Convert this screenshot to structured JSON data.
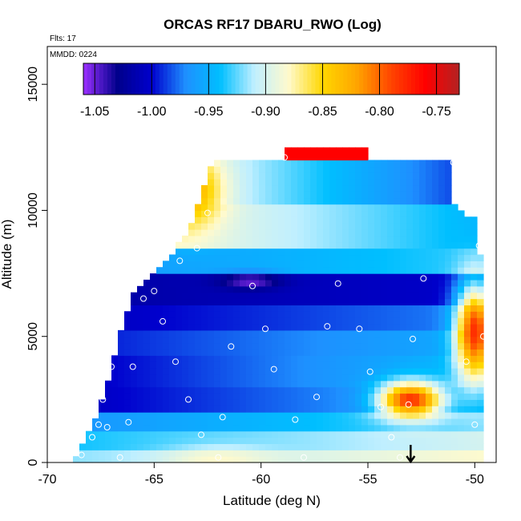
{
  "chart_data": {
    "type": "heatmap",
    "title": "ORCAS RF17 DBARU_RWO (Log)",
    "xlabel": "Latitude (deg N)",
    "ylabel": "Altitude (m)",
    "xlim": [
      -70,
      -49
    ],
    "ylim": [
      0,
      16500
    ],
    "x_ticks": [
      "-70",
      "-65",
      "-60",
      "-55",
      "-50"
    ],
    "y_ticks": [
      "0",
      "5000",
      "10000",
      "15000"
    ],
    "annotations": {
      "flights": "Flts: 17",
      "date": "MMDD: 0224"
    },
    "colorbar": {
      "range": [
        -1.06,
        -0.73
      ],
      "ticks": [
        "-1.05",
        "-1.00",
        "-0.95",
        "-0.90",
        "-0.85",
        "-0.80",
        "-0.75"
      ],
      "tick_values": [
        -1.05,
        -1.0,
        -0.95,
        -0.9,
        -0.85,
        -0.8,
        -0.75
      ],
      "colors": [
        "#9b30ff",
        "#00008b",
        "#0000cd",
        "#1e90ff",
        "#00bfff",
        "#bfefff",
        "#fffacd",
        "#ffd700",
        "#ffa500",
        "#ff4500",
        "#ff0000",
        "#b22222"
      ]
    },
    "envelope": [
      [
        -68.8,
        0
      ],
      [
        -68.6,
        500
      ],
      [
        -68.0,
        1200
      ],
      [
        -67.4,
        2500
      ],
      [
        -67.0,
        3800
      ],
      [
        -66.6,
        5200
      ],
      [
        -66.0,
        6600
      ],
      [
        -64.8,
        7600
      ],
      [
        -64.0,
        8400
      ],
      [
        -63.0,
        10000
      ],
      [
        -62.3,
        12000
      ],
      [
        -51.0,
        12000
      ],
      [
        -51.0,
        10200
      ],
      [
        -50.0,
        9600
      ],
      [
        -49.8,
        8700
      ],
      [
        -49.5,
        5500
      ],
      [
        -49.5,
        200
      ],
      [
        -49.6,
        0
      ]
    ],
    "top_patch": {
      "x": [
        -59.0,
        -55.0
      ],
      "y": [
        12000,
        12600
      ],
      "value": -0.76
    },
    "bands": [
      {
        "y": [
          0,
          400
        ],
        "v_start": -0.92,
        "v_end": -0.88
      },
      {
        "y": [
          400,
          1200
        ],
        "v_start": -0.94,
        "v_end": -0.9
      },
      {
        "y": [
          1200,
          2000
        ],
        "v_start": -0.97,
        "v_end": -0.92
      },
      {
        "y": [
          2000,
          3000
        ],
        "v_start": -1.01,
        "v_end": -0.95
      },
      {
        "y": [
          3000,
          4200
        ],
        "v_start": -1.01,
        "v_end": -0.94
      },
      {
        "y": [
          4200,
          5200
        ],
        "v_start": -1.0,
        "v_end": -0.95
      },
      {
        "y": [
          5200,
          6200
        ],
        "v_start": -1.01,
        "v_end": -0.97
      },
      {
        "y": [
          6200,
          7600
        ],
        "v_start": -1.02,
        "v_end": -1.0
      },
      {
        "y": [
          7600,
          8600
        ],
        "v_start": -0.97,
        "v_end": -0.93
      },
      {
        "y": [
          8600,
          10200
        ],
        "v_start": -0.86,
        "v_end": -0.95
      },
      {
        "y": [
          10200,
          12000
        ],
        "v_start": -0.84,
        "v_end": -1.0
      }
    ],
    "hotspots": [
      {
        "x": -53.0,
        "y": 2500,
        "rx": 1.5,
        "ry": 700,
        "value": -0.78
      },
      {
        "x": -50.0,
        "y": 5200,
        "rx": 0.9,
        "ry": 1900,
        "value": -0.78
      },
      {
        "x": -60.5,
        "y": 7200,
        "rx": 1.4,
        "ry": 300,
        "value": -1.05
      },
      {
        "x": -63.5,
        "y": 10800,
        "rx": 1.6,
        "ry": 1400,
        "value": -0.82
      },
      {
        "x": -62.0,
        "y": 150,
        "rx": 2.5,
        "ry": 450,
        "value": -0.88
      }
    ],
    "sample_points": [
      [
        -68.4,
        300
      ],
      [
        -67.9,
        1000
      ],
      [
        -67.6,
        1500
      ],
      [
        -67.4,
        2500
      ],
      [
        -67.2,
        1400
      ],
      [
        -67.0,
        3800
      ],
      [
        -66.8,
        5600
      ],
      [
        -66.6,
        200
      ],
      [
        -66.2,
        1600
      ],
      [
        -66.0,
        3800
      ],
      [
        -65.5,
        6500
      ],
      [
        -65.0,
        6800
      ],
      [
        -64.6,
        5600
      ],
      [
        -64.0,
        4000
      ],
      [
        -63.8,
        8000
      ],
      [
        -63.4,
        2500
      ],
      [
        -63.0,
        8500
      ],
      [
        -62.8,
        1100
      ],
      [
        -62.5,
        9900
      ],
      [
        -62.0,
        200
      ],
      [
        -61.8,
        1800
      ],
      [
        -61.4,
        4600
      ],
      [
        -60.4,
        7000
      ],
      [
        -59.8,
        5300
      ],
      [
        -59.4,
        3700
      ],
      [
        -58.9,
        12100
      ],
      [
        -58.4,
        1700
      ],
      [
        -58.0,
        200
      ],
      [
        -57.4,
        2600
      ],
      [
        -56.9,
        5400
      ],
      [
        -56.4,
        7100
      ],
      [
        -55.4,
        5300
      ],
      [
        -54.9,
        3600
      ],
      [
        -54.4,
        2200
      ],
      [
        -53.9,
        1000
      ],
      [
        -53.5,
        200
      ],
      [
        -53.1,
        2300
      ],
      [
        -52.9,
        4900
      ],
      [
        -52.4,
        7300
      ],
      [
        -51.9,
        12200
      ],
      [
        -51.0,
        11900
      ],
      [
        -50.4,
        4000
      ],
      [
        -50.0,
        1500
      ],
      [
        -49.8,
        8600
      ],
      [
        -49.6,
        5000
      ]
    ],
    "marker": {
      "x": -53.0,
      "direction": "down"
    }
  }
}
